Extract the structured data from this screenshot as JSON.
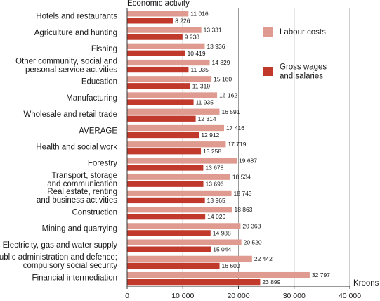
{
  "chart_data": {
    "type": "bar",
    "orientation": "horizontal",
    "title": "",
    "ylabel": "Economic activity",
    "xlabel": "Kroons",
    "xlim": [
      0,
      40000
    ],
    "xticks": [
      0,
      10000,
      20000,
      30000,
      40000
    ],
    "xtick_labels": [
      "0",
      "10 000",
      "20 000",
      "30 000",
      "40 000"
    ],
    "grid": "vertical",
    "legend_position": "right",
    "categories": [
      [
        "Hotels and restaurants"
      ],
      [
        "Agriculture and hunting"
      ],
      [
        "Fishing"
      ],
      [
        "Other community, social and",
        "personal service activities"
      ],
      [
        "Education"
      ],
      [
        "Manufacturing"
      ],
      [
        "Wholesale and retail trade"
      ],
      [
        "AVERAGE"
      ],
      [
        "Health and social work"
      ],
      [
        "Forestry"
      ],
      [
        "Transport, storage",
        "and communication"
      ],
      [
        "Real estate, renting",
        "and business activities"
      ],
      [
        "Construction"
      ],
      [
        "Mining and quarrying"
      ],
      [
        "Electricity, gas and water supply"
      ],
      [
        "Public administration and defence;",
        "compulsory social security"
      ],
      [
        "Financial intermediation"
      ]
    ],
    "series": [
      {
        "name": "Labour costs",
        "color": "#df9b8f",
        "values": [
          11016,
          13331,
          13936,
          14829,
          15160,
          16162,
          16591,
          17416,
          17719,
          19687,
          18534,
          18743,
          18863,
          20363,
          20520,
          22442,
          32797
        ],
        "labels": [
          "11 016",
          "13 331",
          "13 936",
          "14 829",
          "15 160",
          "16 162",
          "16 591",
          "17 416",
          "17 719",
          "19 687",
          "18 534",
          "18 743",
          "18 863",
          "20 363",
          "20 520",
          "22 442",
          "32 797"
        ]
      },
      {
        "name": "Gross wages\nand salaries",
        "color": "#c0392b",
        "values": [
          8226,
          9938,
          10419,
          11035,
          11319,
          11935,
          12314,
          12912,
          13258,
          13678,
          13696,
          13965,
          14029,
          14988,
          15044,
          16600,
          23899
        ],
        "labels": [
          "8 226",
          "9 938",
          "10 419",
          "11 035",
          "11 319",
          "11 935",
          "12 314",
          "12 912",
          "13 258",
          "13 678",
          "13 696",
          "13 965",
          "14 029",
          "14 988",
          "15 044",
          "16 600",
          "23 899"
        ]
      }
    ]
  }
}
